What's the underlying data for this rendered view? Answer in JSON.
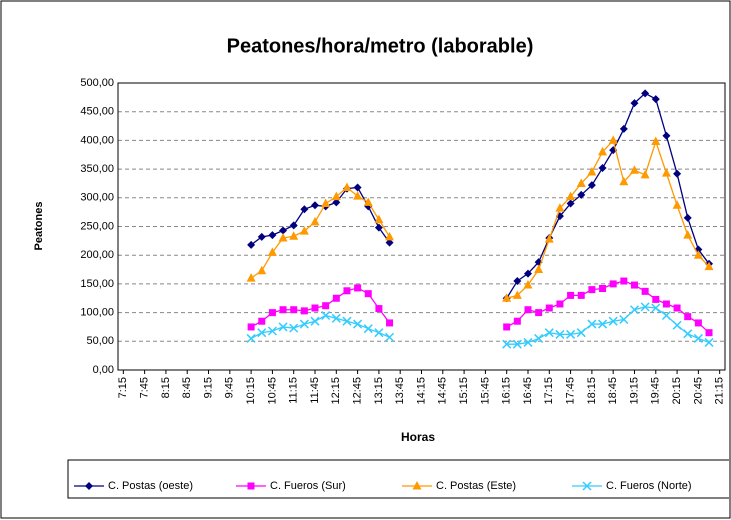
{
  "chart_data": {
    "type": "line",
    "title": "Peatones/hora/metro (laborable)",
    "x_label": "Horas",
    "y_label": "Peatones",
    "categories": [
      "7:15",
      null,
      "7:45",
      null,
      "8:15",
      null,
      "8:45",
      null,
      "9:15",
      null,
      "9:45",
      null,
      "10:15",
      null,
      "10:45",
      null,
      "11:15",
      null,
      "11:45",
      null,
      "12:15",
      null,
      "12:45",
      null,
      "13:15",
      null,
      "13:45",
      null,
      "14:15",
      null,
      "14:45",
      null,
      "15:15",
      null,
      "15:45",
      null,
      "16:15",
      null,
      "16:45",
      null,
      "17:15",
      null,
      "17:45",
      null,
      "18:15",
      null,
      "18:45",
      null,
      "19:15",
      null,
      "19:45",
      null,
      "20:15",
      null,
      "20:45",
      null,
      "21:15"
    ],
    "series": [
      {
        "name": "C. Postas (oeste)",
        "color": "#000080",
        "marker": "diamond",
        "values": [
          null,
          null,
          null,
          null,
          null,
          null,
          null,
          null,
          null,
          null,
          null,
          null,
          218,
          232,
          235,
          243,
          252,
          280,
          287,
          285,
          292,
          316,
          318,
          285,
          248,
          222,
          null,
          null,
          null,
          null,
          null,
          null,
          null,
          null,
          null,
          null,
          125,
          155,
          168,
          188,
          230,
          268,
          290,
          305,
          322,
          352,
          383,
          420,
          465,
          482,
          472,
          408,
          342,
          265,
          210,
          185,
          null
        ]
      },
      {
        "name": "C. Fueros (Sur)",
        "color": "#ff00ff",
        "marker": "square",
        "values": [
          null,
          null,
          null,
          null,
          null,
          null,
          null,
          null,
          null,
          null,
          null,
          null,
          75,
          85,
          100,
          105,
          105,
          103,
          108,
          112,
          125,
          138,
          143,
          133,
          107,
          82,
          null,
          null,
          null,
          null,
          null,
          null,
          null,
          null,
          null,
          null,
          75,
          85,
          105,
          100,
          108,
          115,
          130,
          130,
          140,
          142,
          150,
          155,
          148,
          137,
          123,
          115,
          108,
          93,
          82,
          65,
          null
        ]
      },
      {
        "name": "C. Postas (Este)",
        "color": "#ff9900",
        "marker": "triangle",
        "values": [
          null,
          null,
          null,
          null,
          null,
          null,
          null,
          null,
          null,
          null,
          null,
          null,
          160,
          173,
          205,
          230,
          233,
          242,
          258,
          290,
          302,
          318,
          303,
          292,
          262,
          232,
          null,
          null,
          null,
          null,
          null,
          null,
          null,
          null,
          null,
          null,
          125,
          130,
          148,
          175,
          228,
          282,
          302,
          325,
          345,
          380,
          400,
          328,
          348,
          340,
          398,
          343,
          287,
          235,
          200,
          180,
          null
        ]
      },
      {
        "name": "C. Fueros (Norte)",
        "color": "#33ccff",
        "marker": "x",
        "values": [
          null,
          null,
          null,
          null,
          null,
          null,
          null,
          null,
          null,
          null,
          null,
          null,
          55,
          65,
          68,
          75,
          73,
          80,
          85,
          95,
          90,
          85,
          80,
          72,
          65,
          57,
          null,
          null,
          null,
          null,
          null,
          null,
          null,
          null,
          null,
          null,
          45,
          45,
          48,
          55,
          65,
          62,
          62,
          65,
          80,
          80,
          85,
          88,
          105,
          110,
          108,
          95,
          78,
          63,
          55,
          48,
          null
        ]
      }
    ],
    "ylim": [
      0,
      500
    ],
    "yticks": [
      {
        "value": 0,
        "label": "0,00"
      },
      {
        "value": 50,
        "label": "50,00"
      },
      {
        "value": 100,
        "label": "100,00"
      },
      {
        "value": 150,
        "label": "150,00"
      },
      {
        "value": 200,
        "label": "200,00"
      },
      {
        "value": 250,
        "label": "250,00"
      },
      {
        "value": 300,
        "label": "300,00"
      },
      {
        "value": 350,
        "label": "350,00"
      },
      {
        "value": 400,
        "label": "400,00"
      },
      {
        "value": 450,
        "label": "450,00"
      },
      {
        "value": 500,
        "label": "500,00"
      }
    ],
    "grid": true,
    "legend": "bottom"
  }
}
